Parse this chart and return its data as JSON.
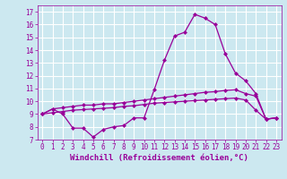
{
  "title": "",
  "xlabel": "Windchill (Refroidissement éolien,°C)",
  "ylabel": "",
  "background_color": "#cce8f0",
  "grid_color": "#ffffff",
  "line_color": "#990099",
  "xlim": [
    -0.5,
    23.5
  ],
  "ylim": [
    7,
    17.5
  ],
  "yticks": [
    7,
    8,
    9,
    10,
    11,
    12,
    13,
    14,
    15,
    16,
    17
  ],
  "xticks": [
    0,
    1,
    2,
    3,
    4,
    5,
    6,
    7,
    8,
    9,
    10,
    11,
    12,
    13,
    14,
    15,
    16,
    17,
    18,
    19,
    20,
    21,
    22,
    23
  ],
  "line1_x": [
    0,
    1,
    2,
    3,
    4,
    5,
    6,
    7,
    8,
    9,
    10,
    11,
    12,
    13,
    14,
    15,
    16,
    17,
    18,
    19,
    20,
    21,
    22,
    23
  ],
  "line1_y": [
    9.0,
    9.4,
    9.0,
    7.9,
    7.9,
    7.2,
    7.8,
    8.0,
    8.1,
    8.7,
    8.7,
    10.9,
    13.2,
    15.1,
    15.4,
    16.8,
    16.5,
    16.0,
    13.7,
    12.2,
    11.6,
    10.6,
    8.6,
    8.7
  ],
  "line2_x": [
    0,
    1,
    2,
    3,
    4,
    5,
    6,
    7,
    8,
    9,
    10,
    11,
    12,
    13,
    14,
    15,
    16,
    17,
    18,
    19,
    20,
    21,
    22,
    23
  ],
  "line2_y": [
    9.0,
    9.4,
    9.5,
    9.6,
    9.7,
    9.7,
    9.8,
    9.8,
    9.9,
    10.0,
    10.1,
    10.2,
    10.3,
    10.4,
    10.5,
    10.6,
    10.7,
    10.75,
    10.85,
    10.9,
    10.6,
    10.4,
    8.6,
    8.7
  ],
  "line3_x": [
    0,
    1,
    2,
    3,
    4,
    5,
    6,
    7,
    8,
    9,
    10,
    11,
    12,
    13,
    14,
    15,
    16,
    17,
    18,
    19,
    20,
    21,
    22,
    23
  ],
  "line3_y": [
    9.0,
    9.1,
    9.2,
    9.3,
    9.35,
    9.4,
    9.45,
    9.5,
    9.6,
    9.65,
    9.75,
    9.85,
    9.9,
    9.95,
    10.0,
    10.05,
    10.1,
    10.15,
    10.2,
    10.25,
    10.1,
    9.3,
    8.6,
    8.7
  ],
  "marker": "D",
  "markersize": 2.0,
  "linewidth": 0.9,
  "tick_fontsize": 5.5,
  "xlabel_fontsize": 6.5
}
